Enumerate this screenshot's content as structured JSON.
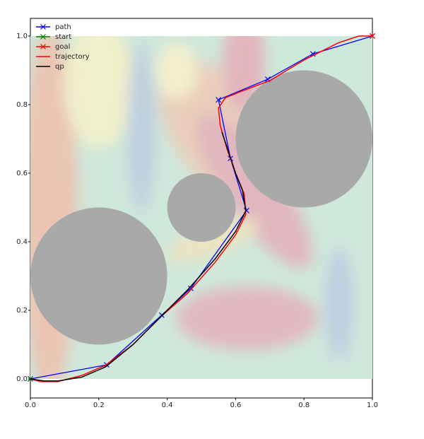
{
  "chart_data": {
    "type": "line",
    "xlim": [
      0,
      1.0
    ],
    "ylim": [
      -0.0557,
      1.0515
    ],
    "xticks": [
      {
        "value": 0,
        "label": "0.0"
      },
      0.2,
      0.4,
      0.6,
      0.8,
      {
        "value": 1,
        "label": "1.0"
      }
    ],
    "yticks": [
      {
        "value": 0,
        "label": "0.0"
      },
      0.2,
      0.4,
      0.6,
      0.8,
      {
        "value": 1,
        "label": "1.0"
      }
    ],
    "grid": false,
    "legend": "upper left",
    "obstacle_color": "#a9a9a9",
    "obstacles": [
      {
        "cx": 0.2,
        "cy": 0.3,
        "r": 0.2
      },
      {
        "cx": 0.5,
        "cy": 0.5,
        "r": 0.1
      },
      {
        "cx": 0.8,
        "cy": 0.7,
        "r": 0.2
      }
    ],
    "series": [
      {
        "name": "path",
        "color": "#0000ff",
        "marker": "x",
        "x": [
          0,
          0.223,
          0.384,
          0.469,
          0.632,
          0.585,
          0.55,
          0.694,
          0.826,
          1.0
        ],
        "values": [
          0,
          0.041,
          0.186,
          0.264,
          0.491,
          0.643,
          0.814,
          0.874,
          0.948,
          1.0
        ]
      },
      {
        "name": "start",
        "color": "#008000",
        "marker": "x",
        "x": [
          0
        ],
        "values": [
          0
        ]
      },
      {
        "name": "goal",
        "color": "#ff0000",
        "marker": "x",
        "x": [
          1.0
        ],
        "values": [
          1.0
        ]
      },
      {
        "name": "trajectory",
        "color": "#ff0000",
        "x": [
          0,
          0.03,
          0.08,
          0.15,
          0.22,
          0.3,
          0.38,
          0.46,
          0.54,
          0.6,
          0.63,
          0.625,
          0.6,
          0.575,
          0.555,
          0.55,
          0.57,
          0.62,
          0.7,
          0.8,
          0.9,
          0.96,
          1.0
        ],
        "values": [
          0,
          -0.008,
          -0.008,
          0.01,
          0.04,
          0.1,
          0.18,
          0.25,
          0.34,
          0.42,
          0.48,
          0.54,
          0.6,
          0.67,
          0.74,
          0.79,
          0.82,
          0.84,
          0.87,
          0.93,
          0.98,
          1.0,
          1.0
        ]
      },
      {
        "name": "qp",
        "color": "#000000",
        "x": [
          0,
          0.04,
          0.08,
          0.15,
          0.22,
          0.3,
          0.38,
          0.46,
          0.54,
          0.6,
          0.63,
          0.62,
          0.6,
          0.58,
          0.56
        ],
        "values": [
          0,
          -0.006,
          -0.006,
          0.005,
          0.035,
          0.1,
          0.18,
          0.26,
          0.35,
          0.43,
          0.49,
          0.55,
          0.6,
          0.66,
          0.72
        ]
      }
    ]
  }
}
